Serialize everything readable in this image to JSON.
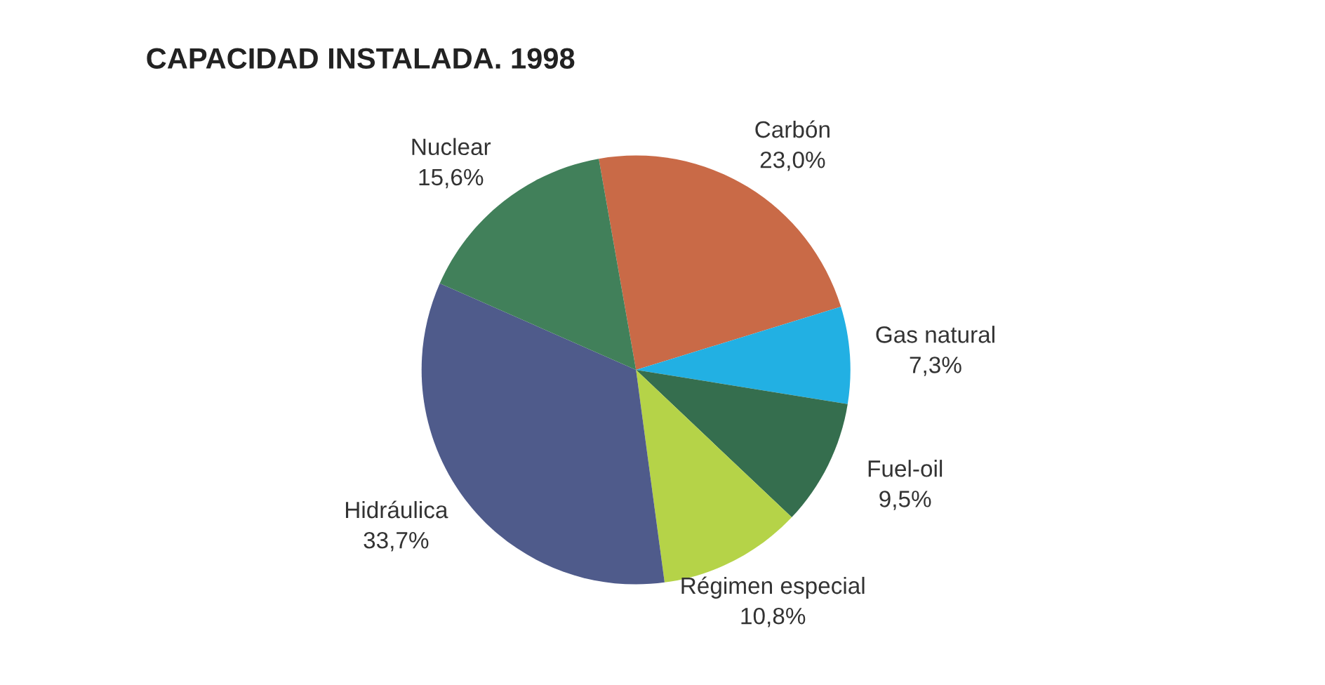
{
  "chart_data": {
    "type": "pie",
    "title": "CAPACIDAD INSTALADA. 1998",
    "categories": [
      "Carbón",
      "Gas natural",
      "Fuel-oil",
      "Régimen especial",
      "Hidráulica",
      "Nuclear"
    ],
    "values": [
      23.0,
      7.3,
      9.5,
      10.8,
      33.7,
      15.6
    ],
    "value_labels": [
      "23,0%",
      "7,3%",
      "9,5%",
      "10,8%",
      "33,7%",
      "15,6%"
    ],
    "colors": [
      "#c96a47",
      "#22b0e3",
      "#356e4e",
      "#b5d348",
      "#4f5b8b",
      "#41805a"
    ],
    "legend": false
  }
}
